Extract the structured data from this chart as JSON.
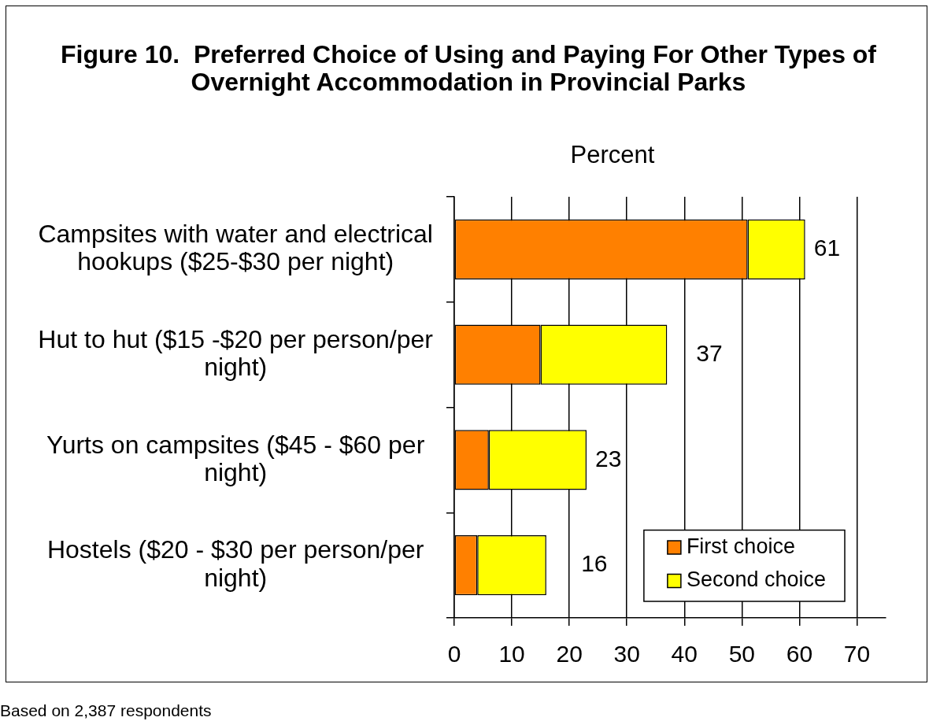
{
  "chart_data": {
    "type": "bar",
    "orientation": "horizontal",
    "stacked": true,
    "title": "Figure 10.  Preferred Choice of Using and Paying For Other Types of Overnight Accommodation in Provincial Parks",
    "xlabel": "Percent",
    "categories": [
      "Campsites with water and electrical hookups ($25-$30 per night)",
      "Hut to hut ($15 -$20 per person/per night)",
      "Yurts on campsites ($45 - $60 per night)",
      "Hostels ($20 - $30 per person/per night)"
    ],
    "series": [
      {
        "name": "First choice",
        "color": "#ff8000",
        "values": [
          51,
          15,
          6,
          4
        ]
      },
      {
        "name": "Second choice",
        "color": "#ffff00",
        "values": [
          10,
          22,
          17,
          12
        ]
      }
    ],
    "totals": [
      "61",
      "37",
      "23",
      "16"
    ],
    "xlim": [
      0,
      75
    ],
    "xticks": [
      0,
      10,
      20,
      30,
      40,
      50,
      60,
      70
    ],
    "grid": "x",
    "legend": "bottom right",
    "annotations": [
      "Based on 2,387 respondents"
    ]
  }
}
